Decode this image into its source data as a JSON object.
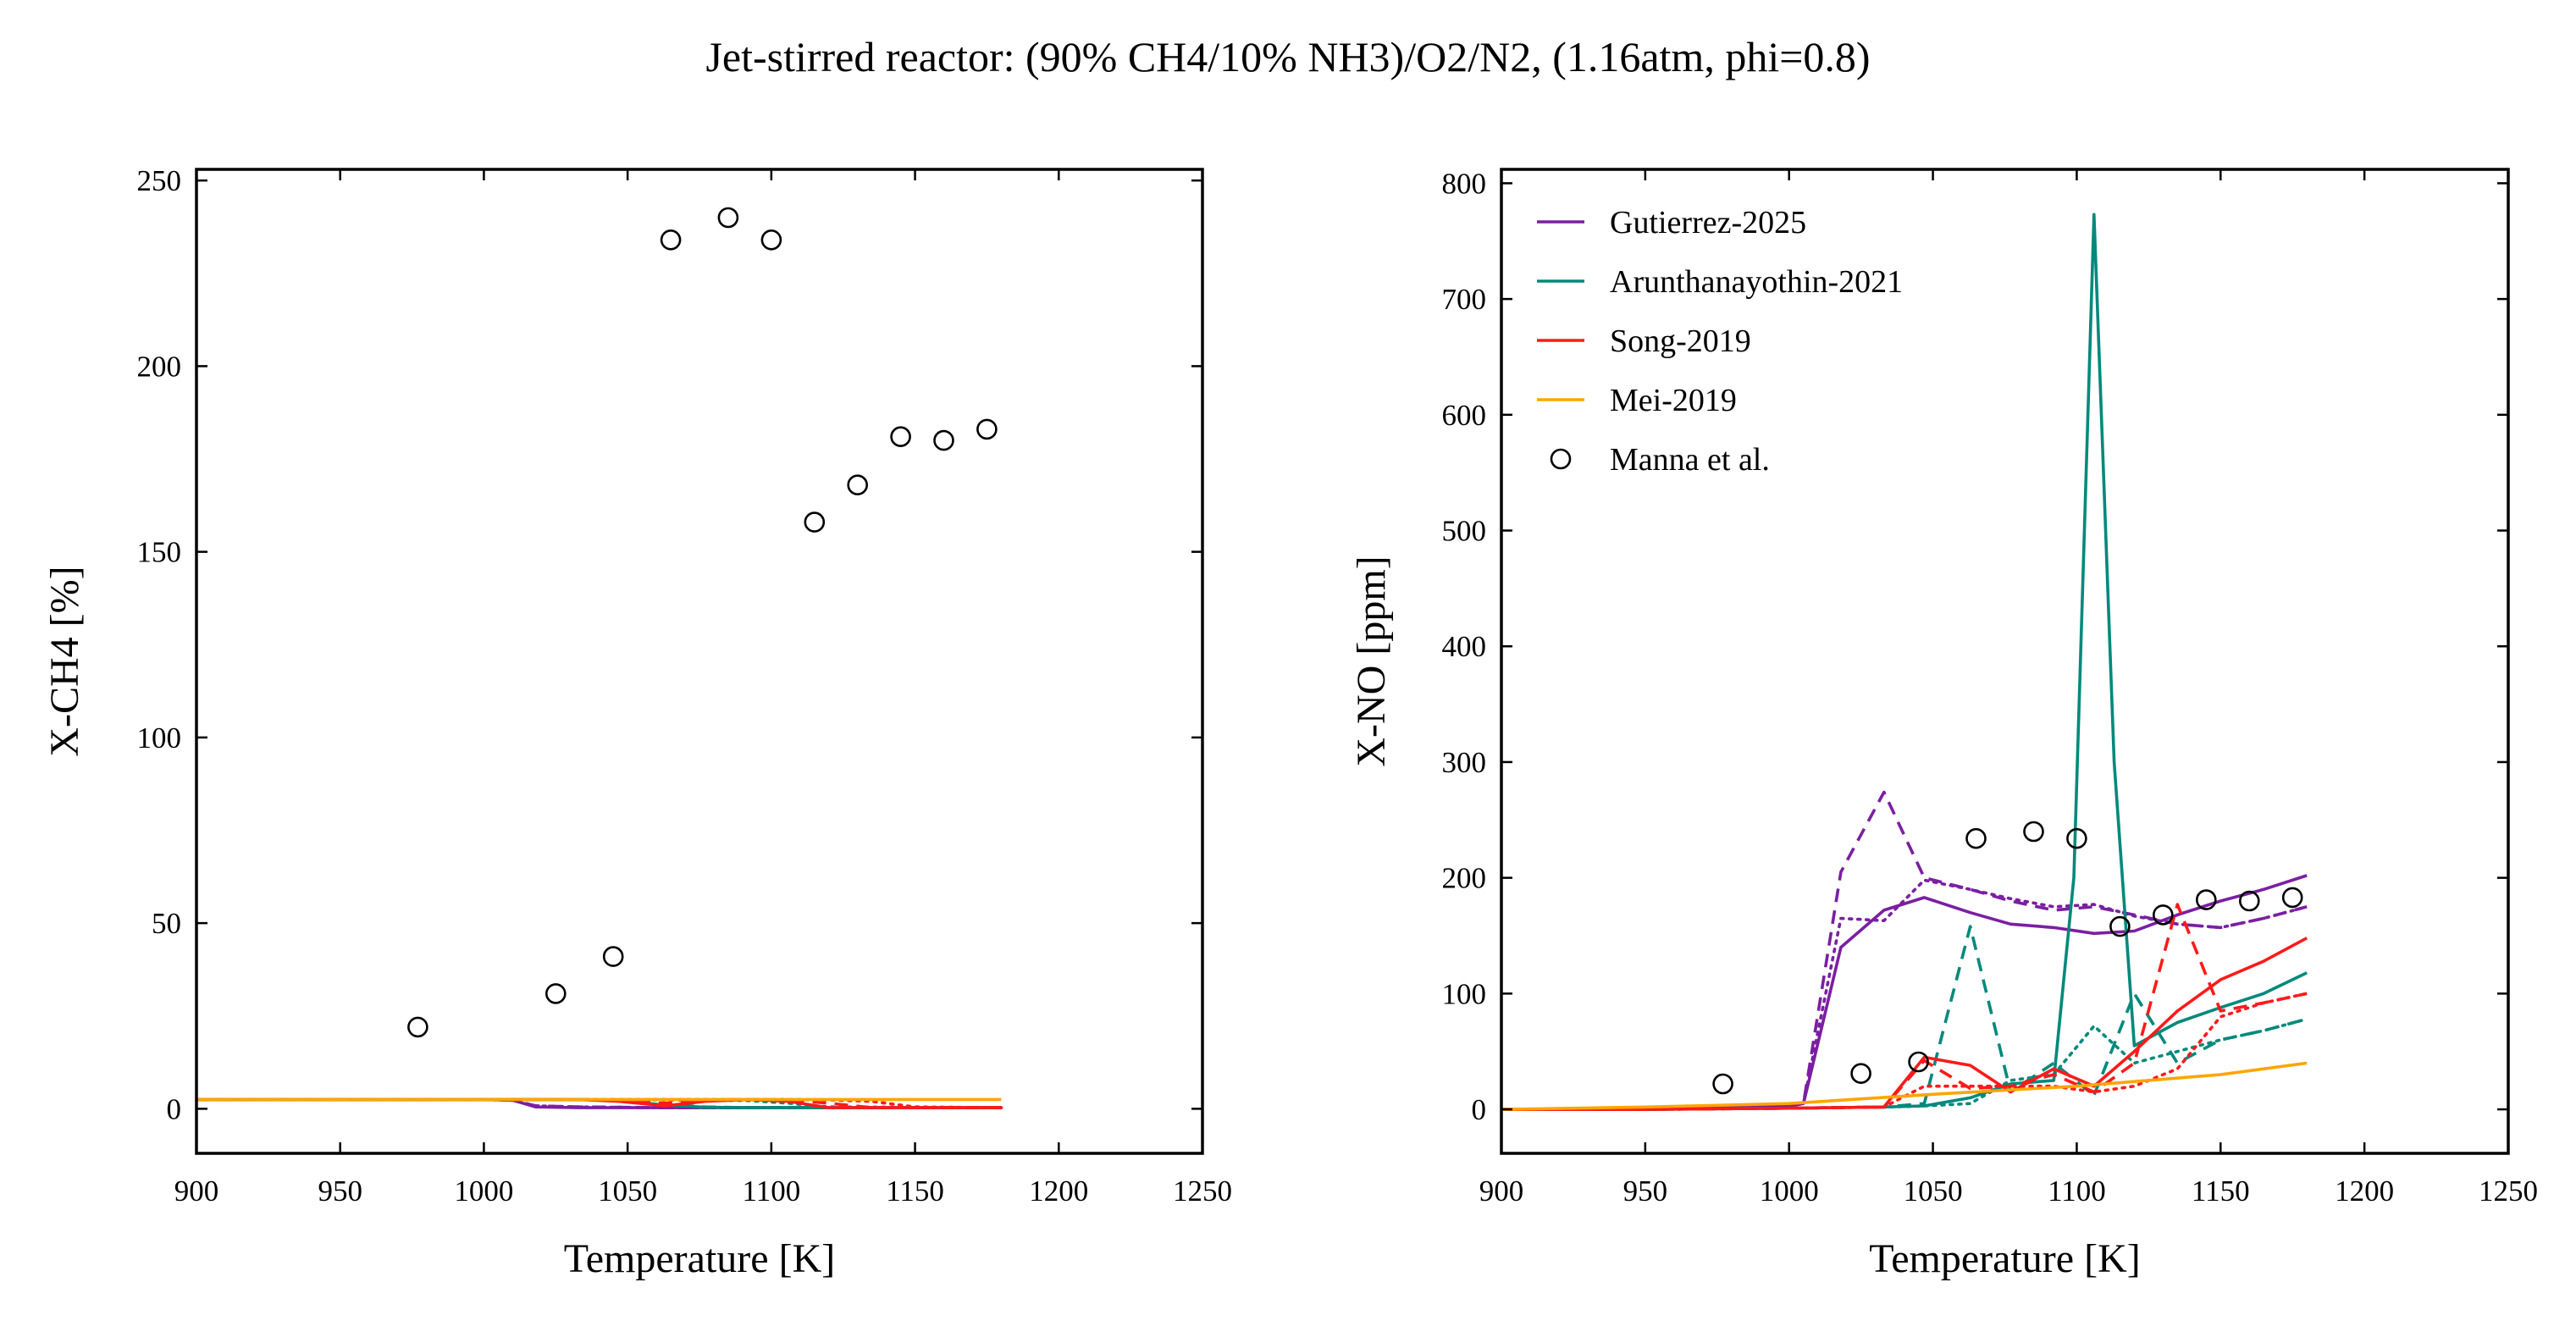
{
  "title": "Jet-stirred reactor: (90% CH4/10% NH3)/O2/N2, (1.16atm, phi=0.8)",
  "colors": {
    "Gutierrez-2025": "#7b1fa2",
    "Arunthanayothin-2021": "#00897b",
    "Song-2019": "#ff1a1a",
    "Mei-2019": "#ffa500",
    "Manna et al.": "#000000"
  },
  "chart_data": [
    {
      "type": "line",
      "id": "left",
      "xlabel": "Temperature [K]",
      "ylabel": "X-CH4 [%]",
      "xlim": [
        900,
        1250
      ],
      "ylim": [
        -12,
        253
      ],
      "xticks": [
        900,
        950,
        1000,
        1050,
        1100,
        1150,
        1200,
        1250
      ],
      "yticks": [
        0,
        50,
        100,
        150,
        200,
        250
      ],
      "legend": null,
      "series": [
        {
          "name": "Gutierrez-2025",
          "style": "solid",
          "x": [
            900,
            950,
            1000,
            1010,
            1018,
            1033,
            1047,
            1063,
            1077,
            1092,
            1106,
            1120,
            1135,
            1150,
            1180
          ],
          "y": [
            2.5,
            2.5,
            2.5,
            2.3,
            0.5,
            0.3,
            0.3,
            0.3,
            0.3,
            0.3,
            0.3,
            0.3,
            0.3,
            0.3,
            0.3
          ]
        },
        {
          "name": "Gutierrez-2025",
          "style": "dashed",
          "x": [
            900,
            950,
            1000,
            1010,
            1018,
            1033,
            1047,
            1063,
            1180
          ],
          "y": [
            2.5,
            2.5,
            2.5,
            2.3,
            0.8,
            0.5,
            0.4,
            0.3,
            0.3
          ]
        },
        {
          "name": "Gutierrez-2025",
          "style": "dotted",
          "x": [
            900,
            950,
            1000,
            1010,
            1018,
            1033,
            1047,
            1063,
            1180
          ],
          "y": [
            2.5,
            2.5,
            2.5,
            2.3,
            0.8,
            0.5,
            0.4,
            0.3,
            0.3
          ]
        },
        {
          "name": "Arunthanayothin-2021",
          "style": "solid",
          "x": [
            900,
            950,
            1000,
            1033,
            1047,
            1063,
            1077,
            1092,
            1106,
            1120,
            1135,
            1180
          ],
          "y": [
            2.5,
            2.5,
            2.5,
            2.5,
            2.3,
            1.0,
            0.4,
            0.3,
            0.3,
            0.3,
            0.3,
            0.3
          ]
        },
        {
          "name": "Arunthanayothin-2021",
          "style": "dashed",
          "x": [
            900,
            950,
            1000,
            1033,
            1047,
            1063,
            1077,
            1092,
            1106,
            1180
          ],
          "y": [
            2.5,
            2.5,
            2.5,
            2.5,
            2.3,
            1.2,
            0.5,
            0.3,
            0.3,
            0.3
          ]
        },
        {
          "name": "Arunthanayothin-2021",
          "style": "dotted",
          "x": [
            900,
            950,
            1000,
            1033,
            1063,
            1092,
            1106,
            1120,
            1180
          ],
          "y": [
            2.5,
            2.5,
            2.5,
            2.5,
            2.4,
            2.2,
            1.5,
            0.5,
            0.3
          ]
        },
        {
          "name": "Song-2019",
          "style": "solid",
          "x": [
            900,
            950,
            1000,
            1033,
            1047,
            1063,
            1077,
            1092,
            1106,
            1120,
            1135,
            1180
          ],
          "y": [
            2.5,
            2.5,
            2.5,
            2.5,
            2.0,
            0.8,
            2.0,
            2.5,
            2.0,
            0.3,
            0.3,
            0.3
          ]
        },
        {
          "name": "Song-2019",
          "style": "dashed",
          "x": [
            900,
            950,
            1000,
            1033,
            1047,
            1063,
            1077,
            1092,
            1106,
            1120,
            1135,
            1180
          ],
          "y": [
            2.5,
            2.5,
            2.5,
            2.5,
            2.2,
            1.5,
            2.4,
            2.5,
            2.4,
            1.5,
            0.3,
            0.3
          ]
        },
        {
          "name": "Song-2019",
          "style": "dotted",
          "x": [
            900,
            950,
            1000,
            1033,
            1063,
            1092,
            1106,
            1120,
            1135,
            1150,
            1180
          ],
          "y": [
            2.5,
            2.5,
            2.5,
            2.5,
            2.5,
            2.5,
            2.5,
            2.4,
            2.0,
            0.5,
            0.3
          ]
        },
        {
          "name": "Mei-2019",
          "style": "solid",
          "x": [
            900,
            950,
            1000,
            1050,
            1100,
            1150,
            1180
          ],
          "y": [
            2.5,
            2.5,
            2.5,
            2.5,
            2.5,
            2.5,
            2.5
          ]
        }
      ],
      "scatter": {
        "name": "Manna et al.",
        "x": [
          977,
          1025,
          1045,
          1065,
          1085,
          1100,
          1115,
          1130,
          1145,
          1160,
          1175
        ],
        "y": [
          22,
          31,
          41,
          234,
          240,
          234,
          158,
          168,
          181,
          180,
          183
        ]
      }
    },
    {
      "type": "line",
      "id": "right",
      "xlabel": "Temperature [K]",
      "ylabel": "X-NO [ppm]",
      "xlim": [
        900,
        1250
      ],
      "ylim": [
        -38,
        812
      ],
      "xticks": [
        900,
        950,
        1000,
        1050,
        1100,
        1150,
        1200,
        1250
      ],
      "yticks": [
        0,
        100,
        200,
        300,
        400,
        500,
        600,
        700,
        800
      ],
      "legend": {
        "position": "upper-left",
        "entries": [
          "Gutierrez-2025",
          "Arunthanayothin-2021",
          "Song-2019",
          "Mei-2019",
          "Manna et al."
        ]
      },
      "series": [
        {
          "name": "Gutierrez-2025",
          "style": "solid",
          "x": [
            900,
            950,
            1000,
            1005,
            1018,
            1033,
            1047,
            1063,
            1077,
            1092,
            1106,
            1120,
            1135,
            1150,
            1165,
            1180
          ],
          "y": [
            0,
            0,
            3,
            5,
            140,
            172,
            183,
            170,
            160,
            157,
            152,
            154,
            168,
            180,
            190,
            202
          ]
        },
        {
          "name": "Gutierrez-2025",
          "style": "dashed",
          "x": [
            900,
            950,
            1000,
            1005,
            1018,
            1033,
            1047,
            1063,
            1077,
            1092,
            1106,
            1120,
            1135,
            1150,
            1165,
            1180
          ],
          "y": [
            0,
            0,
            3,
            5,
            205,
            274,
            200,
            190,
            180,
            172,
            175,
            168,
            160,
            157,
            165,
            175
          ]
        },
        {
          "name": "Gutierrez-2025",
          "style": "dotted",
          "x": [
            900,
            950,
            1000,
            1005,
            1018,
            1033,
            1047,
            1063,
            1077,
            1092,
            1106,
            1120,
            1135,
            1150,
            1165,
            1180
          ],
          "y": [
            0,
            0,
            3,
            5,
            165,
            163,
            198,
            190,
            182,
            175,
            177,
            167,
            160,
            157,
            165,
            175
          ]
        },
        {
          "name": "Arunthanayothin-2021",
          "style": "solid",
          "x": [
            900,
            950,
            1000,
            1033,
            1047,
            1063,
            1077,
            1092,
            1099,
            1106,
            1113,
            1120,
            1135,
            1150,
            1165,
            1180
          ],
          "y": [
            0,
            0,
            1,
            2,
            3,
            10,
            22,
            25,
            200,
            773,
            300,
            55,
            75,
            88,
            100,
            118
          ]
        },
        {
          "name": "Arunthanayothin-2021",
          "style": "dashed",
          "x": [
            900,
            950,
            1000,
            1033,
            1047,
            1063,
            1077,
            1092,
            1106,
            1120,
            1135,
            1150,
            1165,
            1180
          ],
          "y": [
            0,
            0,
            1,
            2,
            5,
            158,
            15,
            40,
            12,
            100,
            40,
            60,
            68,
            78
          ]
        },
        {
          "name": "Arunthanayothin-2021",
          "style": "dotted",
          "x": [
            900,
            950,
            1000,
            1033,
            1047,
            1063,
            1077,
            1092,
            1106,
            1120,
            1135,
            1150,
            1165,
            1180
          ],
          "y": [
            0,
            0,
            1,
            2,
            3,
            5,
            25,
            30,
            72,
            40,
            50,
            60,
            68,
            78
          ]
        },
        {
          "name": "Song-2019",
          "style": "solid",
          "x": [
            900,
            950,
            1000,
            1033,
            1047,
            1063,
            1077,
            1092,
            1106,
            1120,
            1135,
            1150,
            1165,
            1180
          ],
          "y": [
            0,
            0,
            1,
            2,
            45,
            38,
            15,
            35,
            20,
            50,
            85,
            112,
            128,
            148
          ]
        },
        {
          "name": "Song-2019",
          "style": "dashed",
          "x": [
            900,
            950,
            1000,
            1033,
            1047,
            1063,
            1077,
            1092,
            1106,
            1120,
            1135,
            1150,
            1165,
            1180
          ],
          "y": [
            0,
            0,
            1,
            2,
            42,
            18,
            20,
            30,
            15,
            40,
            177,
            85,
            92,
            100
          ]
        },
        {
          "name": "Song-2019",
          "style": "dotted",
          "x": [
            900,
            950,
            1000,
            1033,
            1047,
            1063,
            1077,
            1092,
            1106,
            1120,
            1135,
            1150,
            1165,
            1180
          ],
          "y": [
            0,
            0,
            1,
            2,
            20,
            20,
            20,
            20,
            15,
            20,
            35,
            80,
            92,
            100
          ]
        },
        {
          "name": "Mei-2019",
          "style": "solid",
          "x": [
            900,
            950,
            1000,
            1050,
            1100,
            1150,
            1180
          ],
          "y": [
            0,
            2,
            5,
            13,
            20,
            30,
            40
          ]
        }
      ],
      "scatter": {
        "name": "Manna et al.",
        "x": [
          977,
          1025,
          1045,
          1065,
          1085,
          1100,
          1115,
          1130,
          1145,
          1160,
          1175
        ],
        "y": [
          22,
          31,
          41,
          234,
          240,
          234,
          158,
          168,
          181,
          180,
          183
        ]
      }
    }
  ]
}
